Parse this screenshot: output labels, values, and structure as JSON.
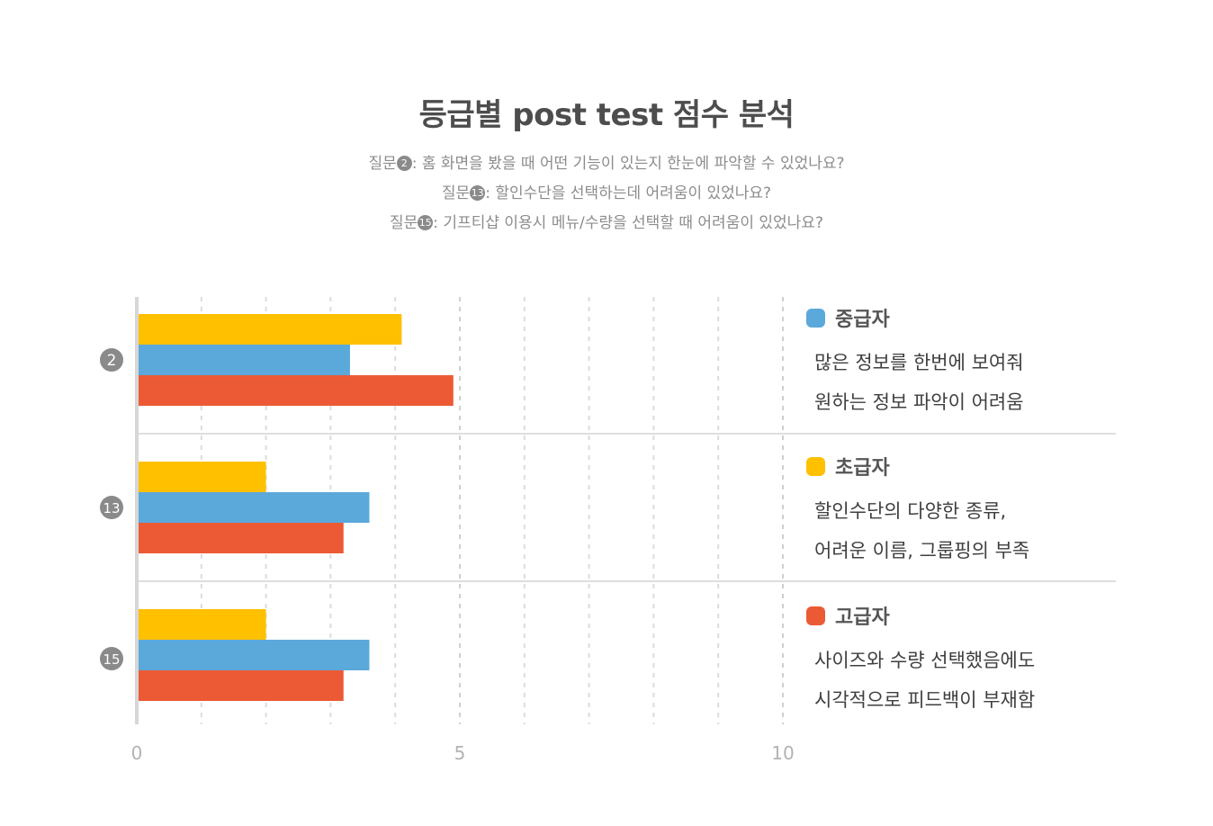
{
  "title": "등급별 post test 점수 분석",
  "questions": [
    {
      "prefix": "질문",
      "badge": "2",
      "text": ": 홈 화면을 봤을 때 어떤 기능이 있는지 한눈에 파악할 수 있었나요?"
    },
    {
      "prefix": "질문",
      "badge": "13",
      "text": ": 할인수단을 선택하는데 어려움이 있었나요?"
    },
    {
      "prefix": "질문",
      "badge": "15",
      "text": ": 기프티샵 이용시 메뉴/수량을 선택할 때 어려움이 있었나요?"
    }
  ],
  "colors": {
    "초급자": "#FFC000",
    "중급자": "#5BA8DB",
    "고급자": "#EC5A35",
    "badge": "#8a8a8a",
    "axis_text": "#b3b3b3"
  },
  "legend": [
    {
      "name": "중급자",
      "color": "#5BA8DB",
      "lines": [
        "많은 정보를 한번에 보여줘",
        "원하는 정보 파악이 어려움"
      ]
    },
    {
      "name": "초급자",
      "color": "#FFC000",
      "lines": [
        "할인수단의 다양한 종류,",
        "어려운 이름, 그룹핑의 부족"
      ]
    },
    {
      "name": "고급자",
      "color": "#EC5A35",
      "lines": [
        "사이즈와 수량 선택했음에도",
        "시각적으로 피드백이 부재함"
      ]
    }
  ],
  "chart_data": {
    "type": "bar",
    "orientation": "horizontal",
    "categories": [
      "2",
      "13",
      "15"
    ],
    "series": [
      {
        "name": "초급자",
        "color": "#FFC000",
        "values": [
          4.1,
          2.0,
          2.0
        ]
      },
      {
        "name": "중급자",
        "color": "#5BA8DB",
        "values": [
          3.3,
          3.6,
          3.6
        ]
      },
      {
        "name": "고급자",
        "color": "#EC5A35",
        "values": [
          4.9,
          3.2,
          3.2
        ]
      }
    ],
    "xlim": [
      0,
      10
    ],
    "xticks": [
      "0",
      "5",
      "10"
    ],
    "grid": true,
    "legend_position": "right"
  }
}
